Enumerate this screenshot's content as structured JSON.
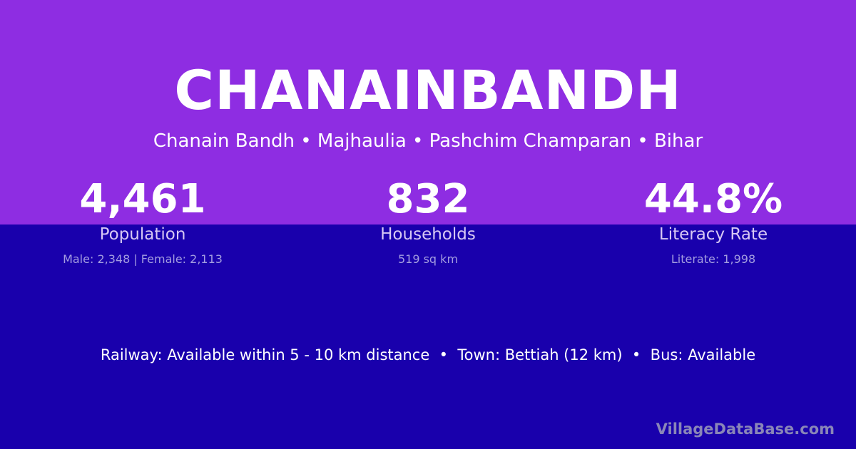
{
  "title": "CHANAINBANDH",
  "subtitle": "Chanain Bandh • Majhaulia • Pashchim Champaran • Bihar",
  "stats": [
    {
      "value": "4,461",
      "label": "Population",
      "detail": "Male: 2,348 | Female: 2,113"
    },
    {
      "value": "832",
      "label": "Households",
      "detail": "519 sq km"
    },
    {
      "value": "44.8%",
      "label": "Literacy Rate",
      "detail": "Literate: 1,998"
    }
  ],
  "info": "Railway: Available within 5 - 10 km distance  •  Town: Bettiah (12 km)  •  Bus: Available",
  "brand": "VillageDataBase.com",
  "colors": {
    "top": "#8e2de2",
    "bottom": "#1900ac"
  }
}
